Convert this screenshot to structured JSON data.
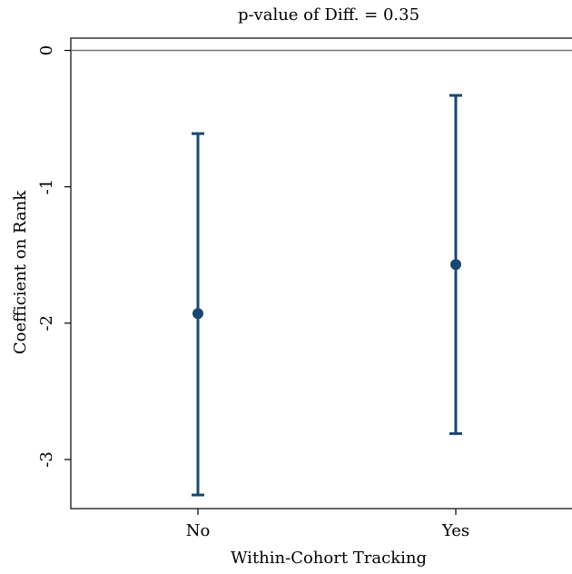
{
  "chart_data": {
    "type": "errorbar",
    "title": "p-value of Diff. = 0.35",
    "x_label": "Within-Cohort Tracking",
    "y_label": "Coefficient on Rank",
    "categories": [
      "No",
      "Yes"
    ],
    "values": [
      -1.93,
      -1.57
    ],
    "lower": [
      -3.26,
      -2.81
    ],
    "upper": [
      -0.61,
      -0.33
    ],
    "color": "#1a476f",
    "reference_line": 0,
    "ylim": [
      -3.36,
      0.09
    ],
    "yticks": [
      0,
      -1,
      -2,
      -3
    ],
    "grid": false
  }
}
